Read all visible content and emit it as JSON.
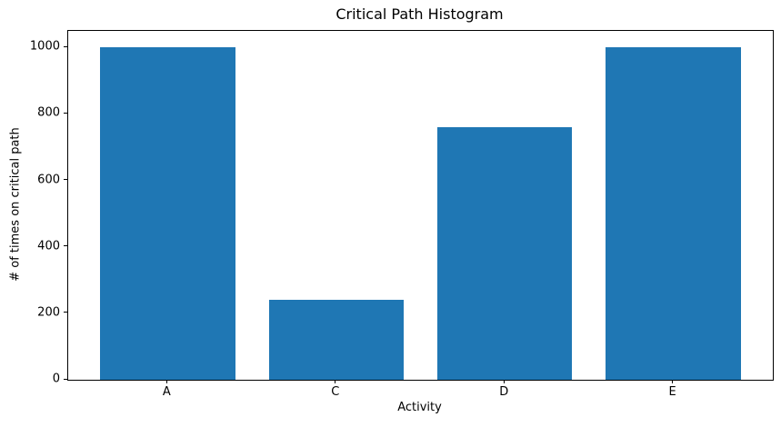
{
  "figure": {
    "background": "#ffffff"
  },
  "chart_data": {
    "type": "bar",
    "title": "Critical Path Histogram",
    "xlabel": "Activity",
    "ylabel": "# of times on critical path",
    "categories": [
      "A",
      "C",
      "D",
      "E"
    ],
    "values": [
      1000,
      240,
      760,
      1000
    ],
    "ylim": [
      0,
      1050
    ],
    "yticks": [
      0,
      200,
      400,
      600,
      800,
      1000
    ],
    "bar_color": "#1f77b4",
    "axis_color": "#000000",
    "grid": false,
    "legend": "none"
  }
}
